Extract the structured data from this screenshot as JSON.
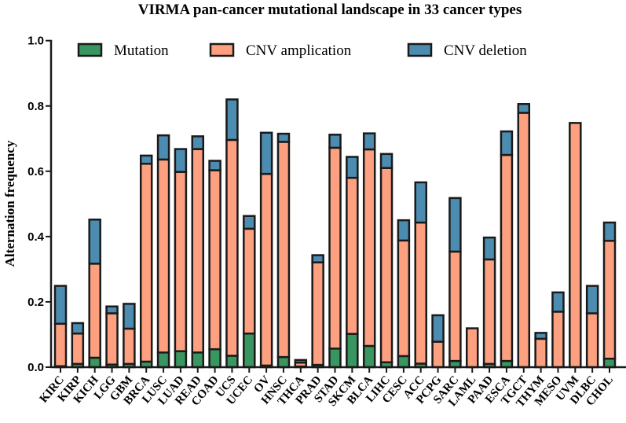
{
  "chart_data": {
    "type": "bar",
    "stacked": true,
    "title": "VIRMA pan-cancer mutational landscape in 33 cancer types",
    "xlabel": "",
    "ylabel": "Alternation frequency",
    "ylim": [
      0,
      1.0
    ],
    "yticks": [
      "0.0",
      "0.2",
      "0.4",
      "0.6",
      "0.8",
      "1.0"
    ],
    "legend_position": "top",
    "categories": [
      "KIRC",
      "KIRP",
      "KICH",
      "LGG",
      "GBM",
      "BRCA",
      "LUSC",
      "LUAD",
      "READ",
      "COAD",
      "UCS",
      "UCEC",
      "OV",
      "HNSC",
      "THCA",
      "PRAD",
      "STAD",
      "SKCM",
      "BLCA",
      "LIHC",
      "CESC",
      "ACC",
      "PCPG",
      "SARC",
      "LAML",
      "PAAD",
      "ESCA",
      "TGCT",
      "THYM",
      "MESO",
      "UVM",
      "DLBC",
      "CHOL"
    ],
    "series": [
      {
        "name": "Mutation",
        "color": "#3a9660",
        "values": [
          0.003,
          0.01,
          0.029,
          0.008,
          0.01,
          0.017,
          0.045,
          0.049,
          0.045,
          0.055,
          0.035,
          0.103,
          0.005,
          0.031,
          0.002,
          0.007,
          0.057,
          0.102,
          0.065,
          0.015,
          0.034,
          0.011,
          0.0,
          0.019,
          0.0,
          0.01,
          0.019,
          0.0,
          0.0,
          0.0,
          0.0,
          0.0,
          0.026
        ]
      },
      {
        "name": "CNV amplication",
        "color": "#fca080",
        "values": [
          0.13,
          0.093,
          0.288,
          0.157,
          0.108,
          0.606,
          0.591,
          0.549,
          0.623,
          0.548,
          0.661,
          0.321,
          0.587,
          0.659,
          0.012,
          0.314,
          0.615,
          0.478,
          0.602,
          0.595,
          0.354,
          0.432,
          0.078,
          0.335,
          0.119,
          0.32,
          0.631,
          0.779,
          0.087,
          0.17,
          0.748,
          0.165,
          0.361
        ]
      },
      {
        "name": "CNV deletion",
        "color": "#4c8cb0",
        "values": [
          0.116,
          0.032,
          0.135,
          0.021,
          0.076,
          0.025,
          0.074,
          0.07,
          0.039,
          0.029,
          0.124,
          0.039,
          0.126,
          0.025,
          0.008,
          0.022,
          0.04,
          0.064,
          0.049,
          0.043,
          0.062,
          0.123,
          0.081,
          0.164,
          0.0,
          0.067,
          0.072,
          0.027,
          0.018,
          0.059,
          0.0,
          0.084,
          0.056
        ]
      }
    ]
  }
}
